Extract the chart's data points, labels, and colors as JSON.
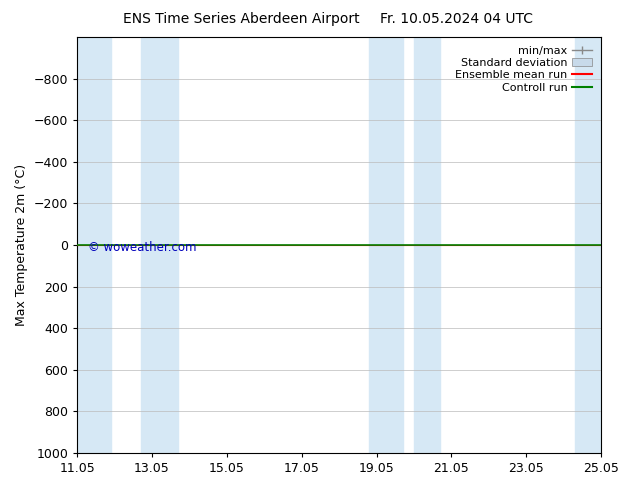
{
  "title": "ENS Time Series Aberdeen Airport",
  "title2": "Fr. 10.05.2024 04 UTC",
  "ylabel": "Max Temperature 2m (°C)",
  "ylim_bottom": 1000,
  "ylim_top": -1000,
  "yticks": [
    -800,
    -600,
    -400,
    -200,
    0,
    200,
    400,
    600,
    800,
    1000
  ],
  "xlim_min": 0,
  "xlim_max": 14,
  "xtick_labels": [
    "11.05",
    "13.05",
    "15.05",
    "17.05",
    "19.05",
    "21.05",
    "23.05",
    "25.05"
  ],
  "xtick_positions": [
    0,
    2,
    4,
    6,
    8,
    10,
    12,
    14
  ],
  "background_color": "#ffffff",
  "plot_bg_color": "#ffffff",
  "shade_color": "#d6e8f5",
  "shade_bands": [
    [
      0.0,
      0.9
    ],
    [
      1.7,
      2.7
    ],
    [
      7.8,
      8.7
    ],
    [
      9.0,
      9.7
    ],
    [
      13.3,
      14.0
    ]
  ],
  "green_line_y": 0.0,
  "red_line_y": 0.0,
  "green_line_color": "#008000",
  "red_line_color": "#ff0000",
  "watermark": "© woweather.com",
  "watermark_color": "#0000bb",
  "legend_items": [
    "min/max",
    "Standard deviation",
    "Ensemble mean run",
    "Controll run"
  ],
  "minmax_line_color": "#888888",
  "std_fill_color": "#c8daea",
  "std_edge_color": "#888888",
  "grid_color": "#bbbbbb",
  "tick_color": "#000000",
  "border_color": "#000000",
  "title_fontsize": 10,
  "label_fontsize": 9,
  "tick_fontsize": 9,
  "legend_fontsize": 8
}
